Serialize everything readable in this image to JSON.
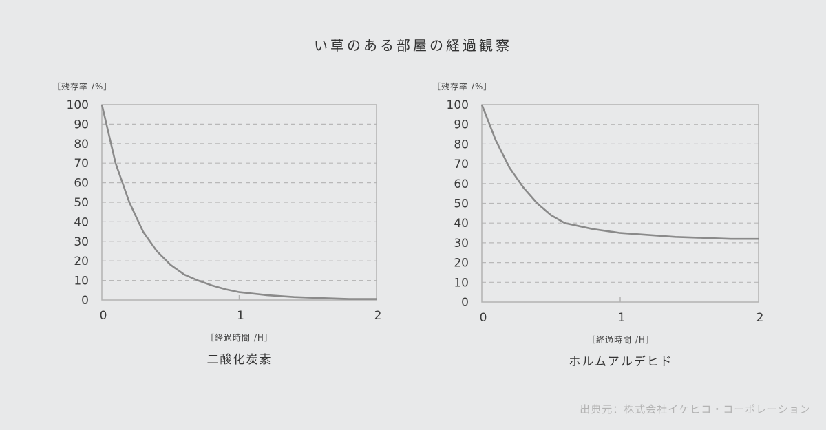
{
  "title": "い草のある部屋の経過観察",
  "source": "出典元：株式会社イケヒコ・コーポレーション",
  "colors": {
    "background": "#e8e9ea",
    "curve": "#8a8a8a",
    "axis": "#b2b2b2",
    "grid": "#b8b8b8"
  },
  "chart_data": [
    {
      "type": "line",
      "title": "二酸化炭素",
      "ylabel": "［残存率 /%］",
      "xlabel": "［経過時間 /H］",
      "xlim": [
        0,
        2
      ],
      "ylim": [
        0,
        100
      ],
      "xticks": [
        0,
        1,
        2
      ],
      "yticks": [
        0,
        10,
        20,
        30,
        40,
        50,
        60,
        70,
        80,
        90,
        100
      ],
      "grid": "dashed horizontal",
      "x": [
        0,
        0.1,
        0.2,
        0.3,
        0.4,
        0.5,
        0.6,
        0.7,
        0.8,
        0.9,
        1.0,
        1.2,
        1.4,
        1.6,
        1.8,
        2.0
      ],
      "series": [
        {
          "values": [
            100,
            70,
            50,
            35,
            25,
            18,
            13,
            10,
            7.5,
            5.5,
            4,
            2.5,
            1.5,
            1,
            0.5,
            0.5
          ]
        }
      ]
    },
    {
      "type": "line",
      "title": "ホルムアルデヒド",
      "ylabel": "［残存率 /%］",
      "xlabel": "［経過時間 /H］",
      "xlim": [
        0,
        2
      ],
      "ylim": [
        0,
        100
      ],
      "xticks": [
        0,
        1,
        2
      ],
      "yticks": [
        0,
        10,
        20,
        30,
        40,
        50,
        60,
        70,
        80,
        90,
        100
      ],
      "grid": "dashed horizontal",
      "x": [
        0,
        0.1,
        0.2,
        0.3,
        0.4,
        0.5,
        0.6,
        0.8,
        1.0,
        1.2,
        1.4,
        1.6,
        1.8,
        2.0
      ],
      "series": [
        {
          "values": [
            100,
            82,
            68,
            58,
            50,
            44,
            40,
            37,
            35,
            34,
            33,
            32.5,
            32,
            32
          ]
        }
      ]
    }
  ]
}
